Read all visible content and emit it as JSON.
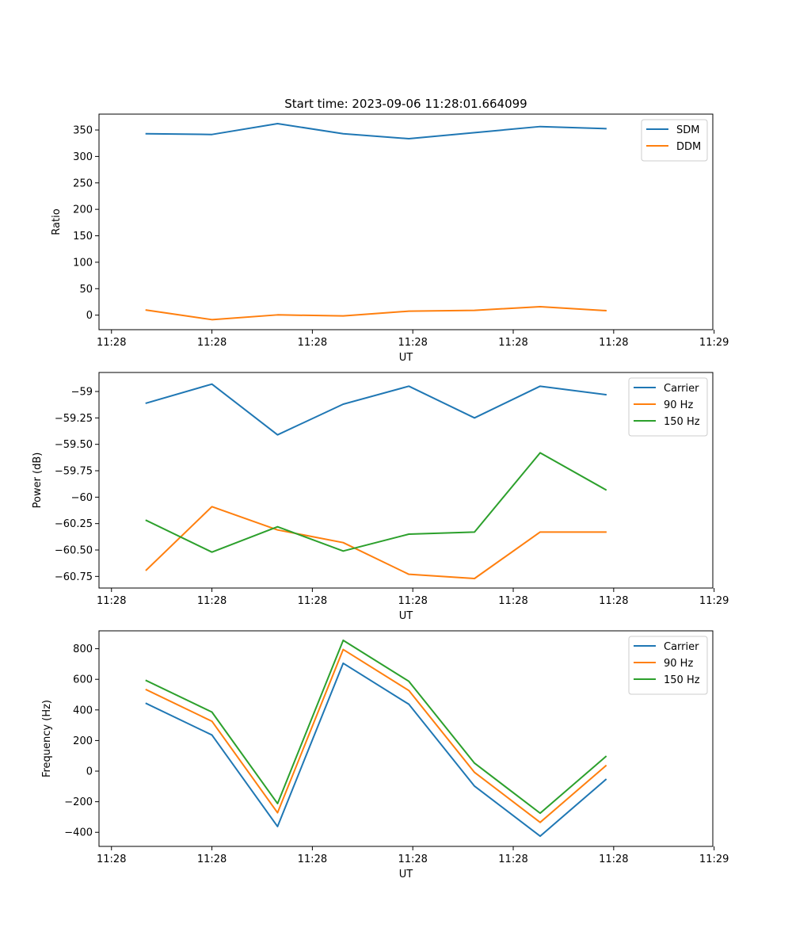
{
  "figure": {
    "title": "Start time: 2023-09-06 11:28:01.664099",
    "x_tick_labels": [
      "11:28",
      "11:28",
      "11:28",
      "11:28",
      "11:28",
      "11:28",
      "11:29"
    ]
  },
  "chart_data": [
    {
      "type": "line",
      "title": "Start time: 2023-09-06 11:28:01.664099",
      "xlabel": "UT",
      "ylabel": "Ratio",
      "x": [
        1,
        2,
        3,
        4,
        5,
        6,
        7,
        8
      ],
      "xlim": [
        0.28,
        9.63
      ],
      "x_ticks": [
        0.47,
        2.0,
        3.53,
        5.06,
        6.59,
        8.12,
        9.65
      ],
      "ylim": [
        -27.5,
        380
      ],
      "y_ticks": [
        0,
        50,
        100,
        150,
        200,
        250,
        300,
        350
      ],
      "legend": "top-right",
      "grid": false,
      "series": [
        {
          "name": "SDM",
          "color": "#1f77b4",
          "values": [
            343,
            341.5,
            362,
            343,
            333.5,
            345,
            356.5,
            352.5
          ]
        },
        {
          "name": "DDM",
          "color": "#ff7f0e",
          "values": [
            9.5,
            -8.5,
            0.5,
            -1.5,
            7.5,
            9,
            16,
            8.5
          ]
        }
      ]
    },
    {
      "type": "line",
      "title": "",
      "xlabel": "UT",
      "ylabel": "Power (dB)",
      "x": [
        1,
        2,
        3,
        4,
        5,
        6,
        7,
        8
      ],
      "xlim": [
        0.28,
        9.63
      ],
      "x_ticks": [
        0.47,
        2.0,
        3.53,
        5.06,
        6.59,
        8.12,
        9.65
      ],
      "ylim": [
        -60.86,
        -58.82
      ],
      "y_ticks": [
        -60.75,
        -60.5,
        -60.25,
        -60.0,
        -59.75,
        -59.5,
        -59.25,
        -59.0
      ],
      "legend": "top-right",
      "grid": false,
      "series": [
        {
          "name": "Carrier",
          "color": "#1f77b4",
          "values": [
            -59.11,
            -58.93,
            -59.41,
            -59.12,
            -58.95,
            -59.25,
            -58.95,
            -59.03
          ]
        },
        {
          "name": "90 Hz",
          "color": "#ff7f0e",
          "values": [
            -60.69,
            -60.09,
            -60.31,
            -60.43,
            -60.73,
            -60.77,
            -60.33,
            -60.33
          ]
        },
        {
          "name": "150 Hz",
          "color": "#2ca02c",
          "values": [
            -60.22,
            -60.52,
            -60.28,
            -60.51,
            -60.35,
            -60.33,
            -59.58,
            -59.93
          ]
        }
      ]
    },
    {
      "type": "line",
      "title": "",
      "xlabel": "UT",
      "ylabel": "Frequency (Hz)",
      "x": [
        1,
        2,
        3,
        4,
        5,
        6,
        7,
        8
      ],
      "xlim": [
        0.28,
        9.63
      ],
      "x_ticks": [
        0.47,
        2.0,
        3.53,
        5.06,
        6.59,
        8.12,
        9.65
      ],
      "ylim": [
        -492,
        917
      ],
      "y_ticks": [
        -400,
        -200,
        0,
        200,
        400,
        600,
        800
      ],
      "legend": "top-right",
      "grid": false,
      "series": [
        {
          "name": "Carrier",
          "color": "#1f77b4",
          "values": [
            442,
            236,
            -362,
            705,
            437,
            -98,
            -425,
            -55
          ]
        },
        {
          "name": "90 Hz",
          "color": "#ff7f0e",
          "values": [
            532,
            326,
            -272,
            795,
            527,
            -8,
            -335,
            35
          ]
        },
        {
          "name": "150 Hz",
          "color": "#2ca02c",
          "values": [
            592,
            386,
            -212,
            855,
            587,
            52,
            -275,
            95
          ]
        }
      ]
    }
  ]
}
